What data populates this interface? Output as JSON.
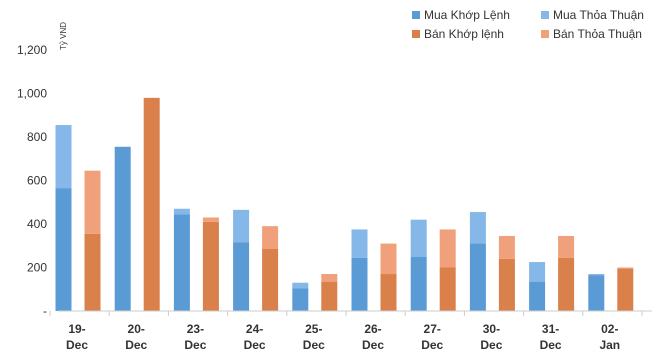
{
  "chart_data": {
    "type": "bar",
    "stacked": true,
    "unit_label": "Tỷ VND",
    "ylim": [
      0,
      1300
    ],
    "yticks": [
      "-",
      "200",
      "400",
      "600",
      "800",
      "1,000",
      "1,200"
    ],
    "ytick_values": [
      0,
      200,
      400,
      600,
      800,
      1000,
      1200
    ],
    "categories": [
      "19-Dec",
      "20-Dec",
      "23-Dec",
      "24-Dec",
      "25-Dec",
      "26-Dec",
      "27-Dec",
      "30-Dec",
      "31-Dec",
      "02-Jan"
    ],
    "category_lines": [
      [
        "19-",
        "Dec"
      ],
      [
        "20-",
        "Dec"
      ],
      [
        "23-",
        "Dec"
      ],
      [
        "24-",
        "Dec"
      ],
      [
        "25-",
        "Dec"
      ],
      [
        "26-",
        "Dec"
      ],
      [
        "27-",
        "Dec"
      ],
      [
        "30-",
        "Dec"
      ],
      [
        "31-",
        "Dec"
      ],
      [
        "02-",
        "Jan"
      ]
    ],
    "legend_position": "top-right",
    "grid": false,
    "groups": [
      {
        "name": "Mua",
        "series": [
          {
            "name": "Mua Khớp Lệnh",
            "color": "#5b9bd5",
            "values": [
              565,
              755,
              445,
              315,
              105,
              245,
              250,
              310,
              135,
              165
            ]
          },
          {
            "name": "Mua Thỏa Thuận",
            "color": "#85b7e8",
            "values": [
              290,
              0,
              25,
              150,
              25,
              130,
              170,
              145,
              90,
              5
            ]
          }
        ]
      },
      {
        "name": "Bán",
        "series": [
          {
            "name": "Bán Khớp lệnh",
            "color": "#d9804b",
            "values": [
              355,
              980,
              410,
              285,
              135,
              170,
              200,
              240,
              245,
              195
            ]
          },
          {
            "name": "Bán Thỏa Thuận",
            "color": "#f0a07a",
            "values": [
              290,
              0,
              20,
              105,
              35,
              140,
              175,
              105,
              100,
              5
            ]
          }
        ]
      }
    ]
  }
}
